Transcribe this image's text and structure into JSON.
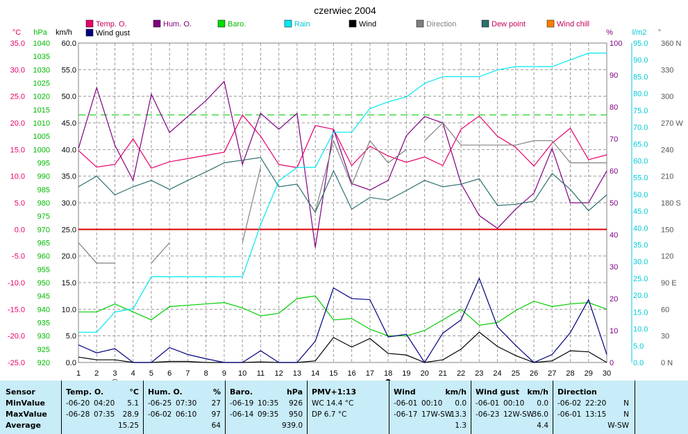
{
  "chart_data": {
    "type": "line",
    "title": "czerwiec 2004",
    "x": [
      1,
      2,
      3,
      4,
      5,
      6,
      7,
      8,
      9,
      10,
      11,
      12,
      13,
      14,
      15,
      16,
      17,
      18,
      19,
      20,
      21,
      22,
      23,
      24,
      25,
      26,
      27,
      28,
      29,
      30
    ],
    "axes": {
      "temp": {
        "unit": "°C",
        "ticks": [
          "35.0",
          "30.0",
          "25.0",
          "20.0",
          "15.0",
          "10.0",
          "5.0",
          "0.0",
          "-5.0",
          "-10.0",
          "-15.0",
          "-20.0",
          "-25.0"
        ],
        "range": [
          -25,
          35
        ]
      },
      "baro": {
        "unit": "hPa",
        "ticks": [
          "1040",
          "1035",
          "1030",
          "1025",
          "1020",
          "1015",
          "1010",
          "1005",
          "1000",
          "995",
          "990",
          "985",
          "980",
          "975",
          "970",
          "965",
          "960",
          "955",
          "950",
          "945",
          "940",
          "935",
          "930",
          "925",
          "920"
        ],
        "range": [
          920,
          1040
        ]
      },
      "wind": {
        "unit": "km/h",
        "ticks": [
          "60.0",
          "55.0",
          "50.0",
          "45.0",
          "40.0",
          "35.0",
          "30.0",
          "25.0",
          "20.0",
          "15.0",
          "10.0",
          "5.0",
          "0.0"
        ],
        "range": [
          0,
          60
        ]
      },
      "hum": {
        "unit": "%",
        "ticks": [
          "100",
          "90",
          "80",
          "70",
          "60",
          "50",
          "40",
          "30",
          "20",
          "10",
          "0"
        ],
        "range": [
          0,
          100
        ]
      },
      "rain": {
        "unit": "l/m2",
        "ticks": [
          "95.0",
          "90.0",
          "85.0",
          "80.0",
          "75.0",
          "70.0",
          "65.0",
          "60.0",
          "55.0",
          "50.0",
          "45.0",
          "40.0",
          "35.0",
          "30.0",
          "25.0",
          "20.0",
          "15.0",
          "10.0",
          "5.0",
          "0.0"
        ],
        "range": [
          0,
          95
        ]
      },
      "dir": {
        "unit": "°",
        "ticks": [
          "360 N",
          "330",
          "300",
          "270 W",
          "240",
          "210",
          "180 S",
          "150",
          "120",
          "90 E",
          "60",
          "30",
          "0 N"
        ],
        "range": [
          0,
          360
        ]
      }
    },
    "legend": [
      {
        "name": "Temp. O.",
        "color": "#e8006a"
      },
      {
        "name": "Hum. O.",
        "color": "#800080"
      },
      {
        "name": "Baro.",
        "color": "#00dd00"
      },
      {
        "name": "Rain",
        "color": "#00e8f0"
      },
      {
        "name": "Wind",
        "color": "#000000"
      },
      {
        "name": "Direction",
        "color": "#808080"
      },
      {
        "name": "Dew point",
        "color": "#2e7070"
      },
      {
        "name": "Wind chill",
        "color": "#ff8000"
      },
      {
        "name": "Wind gust",
        "color": "#000080"
      }
    ],
    "series": [
      {
        "name": "Temp. O.",
        "axis": "temp",
        "color": "#e8006a",
        "values": [
          14.8,
          11.7,
          12.2,
          17.0,
          11.5,
          12.7,
          13.3,
          13.9,
          14.5,
          21.5,
          17.5,
          12.2,
          11.6,
          19.5,
          18.8,
          12.0,
          15.6,
          13.8,
          12.6,
          13.6,
          12.0,
          18.8,
          21.3,
          17.5,
          15.4,
          11.9,
          16.2,
          19.0,
          13.1,
          14.0
        ]
      },
      {
        "name": "Hum. O.",
        "axis": "hum",
        "color": "#800080",
        "values": [
          67,
          86,
          68,
          57,
          84,
          72,
          77,
          82,
          88,
          62,
          78,
          73,
          78,
          36,
          73,
          56,
          54,
          57,
          71,
          77,
          75,
          56,
          46,
          42,
          48,
          53,
          67,
          50,
          50,
          60
        ]
      },
      {
        "name": "Baro.",
        "axis": "baro",
        "color": "#00cc00",
        "values": [
          939,
          939,
          942,
          939,
          936,
          941,
          941.5,
          942,
          942.5,
          940.5,
          937.5,
          938.5,
          944,
          945,
          936,
          936.5,
          932.5,
          930,
          930,
          932,
          936,
          940,
          934,
          935,
          939.5,
          943,
          941,
          942,
          942.5,
          940
        ]
      },
      {
        "name": "Rain",
        "axis": "rain",
        "color": "#00e8f0",
        "values": [
          9,
          9,
          15,
          16,
          25.5,
          25.5,
          25.5,
          25.5,
          25.5,
          25.5,
          41,
          54,
          58,
          58,
          68.5,
          68.5,
          75.5,
          77.5,
          79,
          83,
          85,
          85,
          85,
          87,
          88,
          88,
          88,
          90,
          92,
          92
        ]
      },
      {
        "name": "Dew point",
        "axis": "temp",
        "color": "#2e7070",
        "values": [
          8.0,
          10.0,
          6.5,
          8.0,
          9.2,
          7.5,
          9.2,
          10.8,
          12.5,
          13.0,
          13.5,
          8.0,
          8.5,
          3.2,
          11.0,
          3.8,
          6.0,
          5.5,
          7.3,
          9.2,
          8.0,
          8.5,
          9.5,
          4.5,
          4.7,
          5.3,
          10.5,
          7.5,
          3.5,
          6.5
        ]
      },
      {
        "name": "Wind",
        "axis": "wind",
        "color": "#000000",
        "values": [
          1.0,
          0.5,
          0.5,
          0.0,
          0.0,
          0.2,
          0.2,
          0.0,
          0.0,
          0.0,
          0.1,
          0.0,
          0.0,
          0.3,
          4.7,
          2.9,
          4.5,
          1.7,
          1.4,
          0.0,
          0.5,
          2.5,
          5.7,
          3.0,
          1.3,
          0.0,
          0.3,
          2.2,
          2.0,
          0.0
        ]
      },
      {
        "name": "Wind gust",
        "axis": "wind",
        "color": "#000080",
        "values": [
          3.3,
          1.8,
          2.6,
          0.0,
          0.0,
          2.8,
          1.5,
          0.7,
          0.0,
          0.0,
          2.2,
          0.0,
          0.0,
          4.0,
          14.0,
          12.0,
          11.8,
          4.8,
          5.3,
          0.0,
          5.5,
          8.0,
          15.8,
          6.7,
          3.2,
          0.0,
          1.5,
          5.6,
          11.8,
          1.5
        ]
      },
      {
        "name": "Direction",
        "axis": "dir",
        "color": "#808080",
        "segments": [
          [
            [
              1,
              135
            ],
            [
              2,
              112
            ],
            [
              3,
              112
            ]
          ],
          [
            [
              5,
              112
            ],
            [
              6,
              135
            ]
          ],
          [
            [
              10,
              135
            ],
            [
              11,
              220
            ]
          ],
          [
            [
              14,
              170
            ],
            [
              15,
              250
            ],
            [
              16,
              200
            ],
            [
              17,
              250
            ],
            [
              18,
              225
            ],
            [
              19,
              240
            ]
          ],
          [
            [
              20,
              250
            ],
            [
              21,
              270
            ],
            [
              22,
              245
            ],
            [
              23,
              245
            ],
            [
              24,
              245
            ],
            [
              25,
              245
            ],
            [
              26,
              250
            ],
            [
              27,
              250
            ],
            [
              28,
              225
            ],
            [
              29,
              225
            ],
            [
              30,
              225
            ]
          ]
        ]
      }
    ],
    "reference_lines": [
      {
        "axis": "temp",
        "value": 0,
        "color": "#dd0000",
        "style": "solid"
      },
      {
        "axis": "baro",
        "value": 1013,
        "color": "#00cc00",
        "style": "dashed"
      }
    ],
    "markers": [
      {
        "day": 3,
        "symbol": "○"
      },
      {
        "day": 18,
        "symbol": "●"
      }
    ],
    "grid": true
  },
  "stats": {
    "sensor": {
      "header": "Sensor",
      "rows": [
        "MinValue",
        "MaxValue",
        "Average"
      ]
    },
    "temp": {
      "header": "Temp. O.",
      "unit": "°C",
      "min_date": "-06-20",
      "min_time": "04:20",
      "min_val": "5.1",
      "max_date": "-06-28",
      "max_time": "07:35",
      "max_val": "28.9",
      "avg": "15.25"
    },
    "hum": {
      "header": "Hum. O.",
      "unit": "%",
      "min_date": "-06-25",
      "min_time": "07:30",
      "min_val": "27",
      "max_date": "-06-02",
      "max_time": "06:10",
      "max_val": "97",
      "avg": "64"
    },
    "baro": {
      "header": "Baro.",
      "unit": "hPa",
      "min_date": "-06-19",
      "min_time": "10:35",
      "min_val": "926",
      "max_date": "-06-14",
      "max_time": "09:35",
      "max_val": "950",
      "avg": "939.0"
    },
    "pmv": {
      "header": "PMV+1:13",
      "wc": "WC 14.4 °C",
      "dp": "DP 6.7 °C"
    },
    "wind": {
      "header": "Wind",
      "unit": "km/h",
      "min_date": "-06-01",
      "min_time": "00:10",
      "min_val": "0.0",
      "max_date": "-06-17",
      "max_time": "17W-SW",
      "max_val": "13.3",
      "avg": "1.3"
    },
    "gust": {
      "header": "Wind gust",
      "unit": "km/h",
      "min_date": "-06-01",
      "min_time": "00:10",
      "min_val": "0.0",
      "max_date": "-06-23",
      "max_time": "12W-SW",
      "max_val": "36.0",
      "avg": "4.4"
    },
    "dir": {
      "header": "Direction",
      "min_date": "-06-02",
      "min_time": "22:20",
      "min_val": "N",
      "max_date": "-06-01",
      "max_time": "13:15",
      "max_val": "N",
      "avg": "W-SW"
    }
  }
}
